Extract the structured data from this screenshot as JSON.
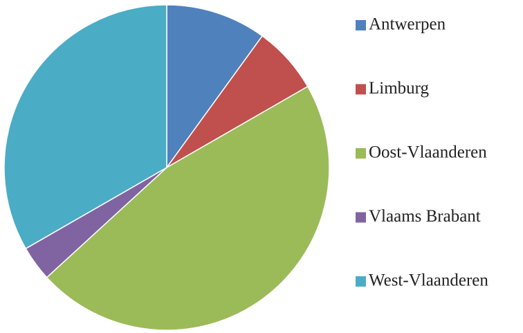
{
  "chart_data": {
    "type": "pie",
    "categories": [
      "Antwerpen",
      "Limburg",
      "Oost-Vlaanderen",
      "Vlaams Brabant",
      "West-Vlaanderen"
    ],
    "values": [
      10,
      6.7,
      46.5,
      3.5,
      33.3
    ],
    "colors": [
      "#4f81bd",
      "#c0504d",
      "#9bbb59",
      "#8064a2",
      "#4bacc6"
    ],
    "legend": "right"
  }
}
